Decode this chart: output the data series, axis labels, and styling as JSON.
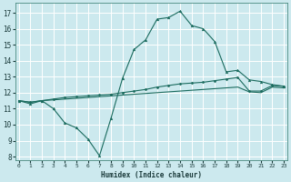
{
  "xlabel": "Humidex (Indice chaleur)",
  "bg_color": "#cce9ee",
  "grid_color": "#ffffff",
  "line_color": "#1a6b5e",
  "x_ticks": [
    0,
    1,
    2,
    3,
    4,
    5,
    6,
    7,
    8,
    9,
    10,
    11,
    12,
    13,
    14,
    15,
    16,
    17,
    18,
    19,
    20,
    21,
    22,
    23
  ],
  "y_ticks": [
    8,
    9,
    10,
    11,
    12,
    13,
    14,
    15,
    16,
    17
  ],
  "ylim": [
    7.8,
    17.6
  ],
  "xlim": [
    -0.3,
    23.3
  ],
  "curve1_x": [
    0,
    1,
    2,
    3,
    4,
    5,
    6,
    7,
    8,
    9,
    10,
    11,
    12,
    13,
    14,
    15,
    16,
    17,
    18,
    19,
    20,
    21,
    22,
    23
  ],
  "curve1_y": [
    11.5,
    11.3,
    11.5,
    11.0,
    10.1,
    9.8,
    9.1,
    8.05,
    10.4,
    12.9,
    14.7,
    15.3,
    16.6,
    16.7,
    17.1,
    16.2,
    16.0,
    15.2,
    13.3,
    13.4,
    12.8,
    12.7,
    12.5,
    12.4
  ],
  "curve2_x": [
    0,
    1,
    2,
    3,
    4,
    5,
    6,
    7,
    8,
    9,
    10,
    11,
    12,
    13,
    14,
    15,
    16,
    17,
    18,
    19,
    20,
    21,
    22,
    23
  ],
  "curve2_y": [
    11.5,
    11.4,
    11.5,
    11.6,
    11.7,
    11.75,
    11.8,
    11.85,
    11.9,
    12.0,
    12.1,
    12.2,
    12.35,
    12.45,
    12.55,
    12.6,
    12.65,
    12.75,
    12.85,
    12.95,
    12.1,
    12.1,
    12.45,
    12.4
  ],
  "curve3_x": [
    0,
    1,
    2,
    3,
    4,
    5,
    6,
    7,
    8,
    9,
    10,
    11,
    12,
    13,
    14,
    15,
    16,
    17,
    18,
    19,
    20,
    21,
    22,
    23
  ],
  "curve3_y": [
    11.5,
    11.4,
    11.5,
    11.55,
    11.6,
    11.65,
    11.7,
    11.75,
    11.8,
    11.85,
    11.9,
    11.95,
    12.0,
    12.05,
    12.1,
    12.15,
    12.2,
    12.25,
    12.3,
    12.35,
    12.05,
    12.0,
    12.35,
    12.3
  ]
}
